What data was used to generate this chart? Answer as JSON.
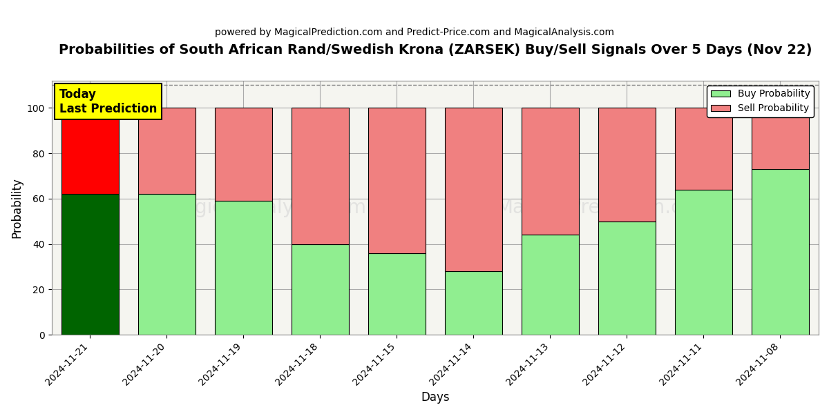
{
  "title": "Probabilities of South African Rand/Swedish Krona (ZARSEK) Buy/Sell Signals Over 5 Days (Nov 22)",
  "subtitle": "powered by MagicalPrediction.com and Predict-Price.com and MagicalAnalysis.com",
  "xlabel": "Days",
  "ylabel": "Probability",
  "categories": [
    "2024-11-21",
    "2024-11-20",
    "2024-11-19",
    "2024-11-18",
    "2024-11-15",
    "2024-11-14",
    "2024-11-13",
    "2024-11-12",
    "2024-11-11",
    "2024-11-08"
  ],
  "buy_values": [
    62,
    62,
    59,
    40,
    36,
    28,
    44,
    50,
    64,
    73
  ],
  "sell_values": [
    38,
    38,
    41,
    60,
    64,
    72,
    56,
    50,
    36,
    27
  ],
  "today_bar_buy_color": "#006400",
  "today_bar_sell_color": "#FF0000",
  "buy_color": "#90EE90",
  "sell_color": "#F08080",
  "today_annotation_bg": "#FFFF00",
  "today_annotation_text": "Today\nLast Prediction",
  "ylim": [
    0,
    112
  ],
  "yticks": [
    0,
    20,
    40,
    60,
    80,
    100
  ],
  "dashed_line_y": 110,
  "watermark_lines": [
    "MagicalAnalysis.com",
    "MagicalPrediction.com"
  ],
  "watermark_line2": "MagicalPrediction.com",
  "background_color": "#ffffff",
  "plot_bg_color": "#f5f5f0",
  "grid_color": "#aaaaaa",
  "legend_buy_label": "Buy Probability",
  "legend_sell_label": "Sell Probability",
  "title_fontsize": 14,
  "subtitle_fontsize": 10,
  "bar_width": 0.75
}
